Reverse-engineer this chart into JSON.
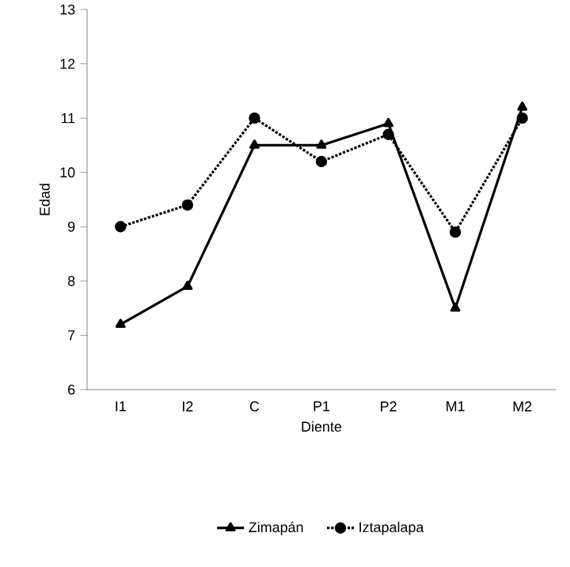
{
  "chart_data": {
    "type": "line",
    "xlabel": "Diente",
    "ylabel": "Edad",
    "categories": [
      "I1",
      "I2",
      "C",
      "P1",
      "P2",
      "M1",
      "M2"
    ],
    "series": [
      {
        "name": "Zimapán",
        "color": "#000000",
        "marker": "triangle",
        "line_style": "solid",
        "values": [
          7.2,
          7.9,
          10.5,
          10.5,
          10.9,
          7.5,
          11.2
        ]
      },
      {
        "name": "Iztapalapa",
        "color": "#000000",
        "marker": "circle",
        "line_style": "dotted",
        "values": [
          9.0,
          9.4,
          11.0,
          10.2,
          10.7,
          8.9,
          11.0
        ]
      }
    ],
    "ylim": [
      6,
      13
    ],
    "yticks": [
      6,
      7,
      8,
      9,
      10,
      11,
      12,
      13
    ],
    "grid": false,
    "legend": "bottom"
  }
}
